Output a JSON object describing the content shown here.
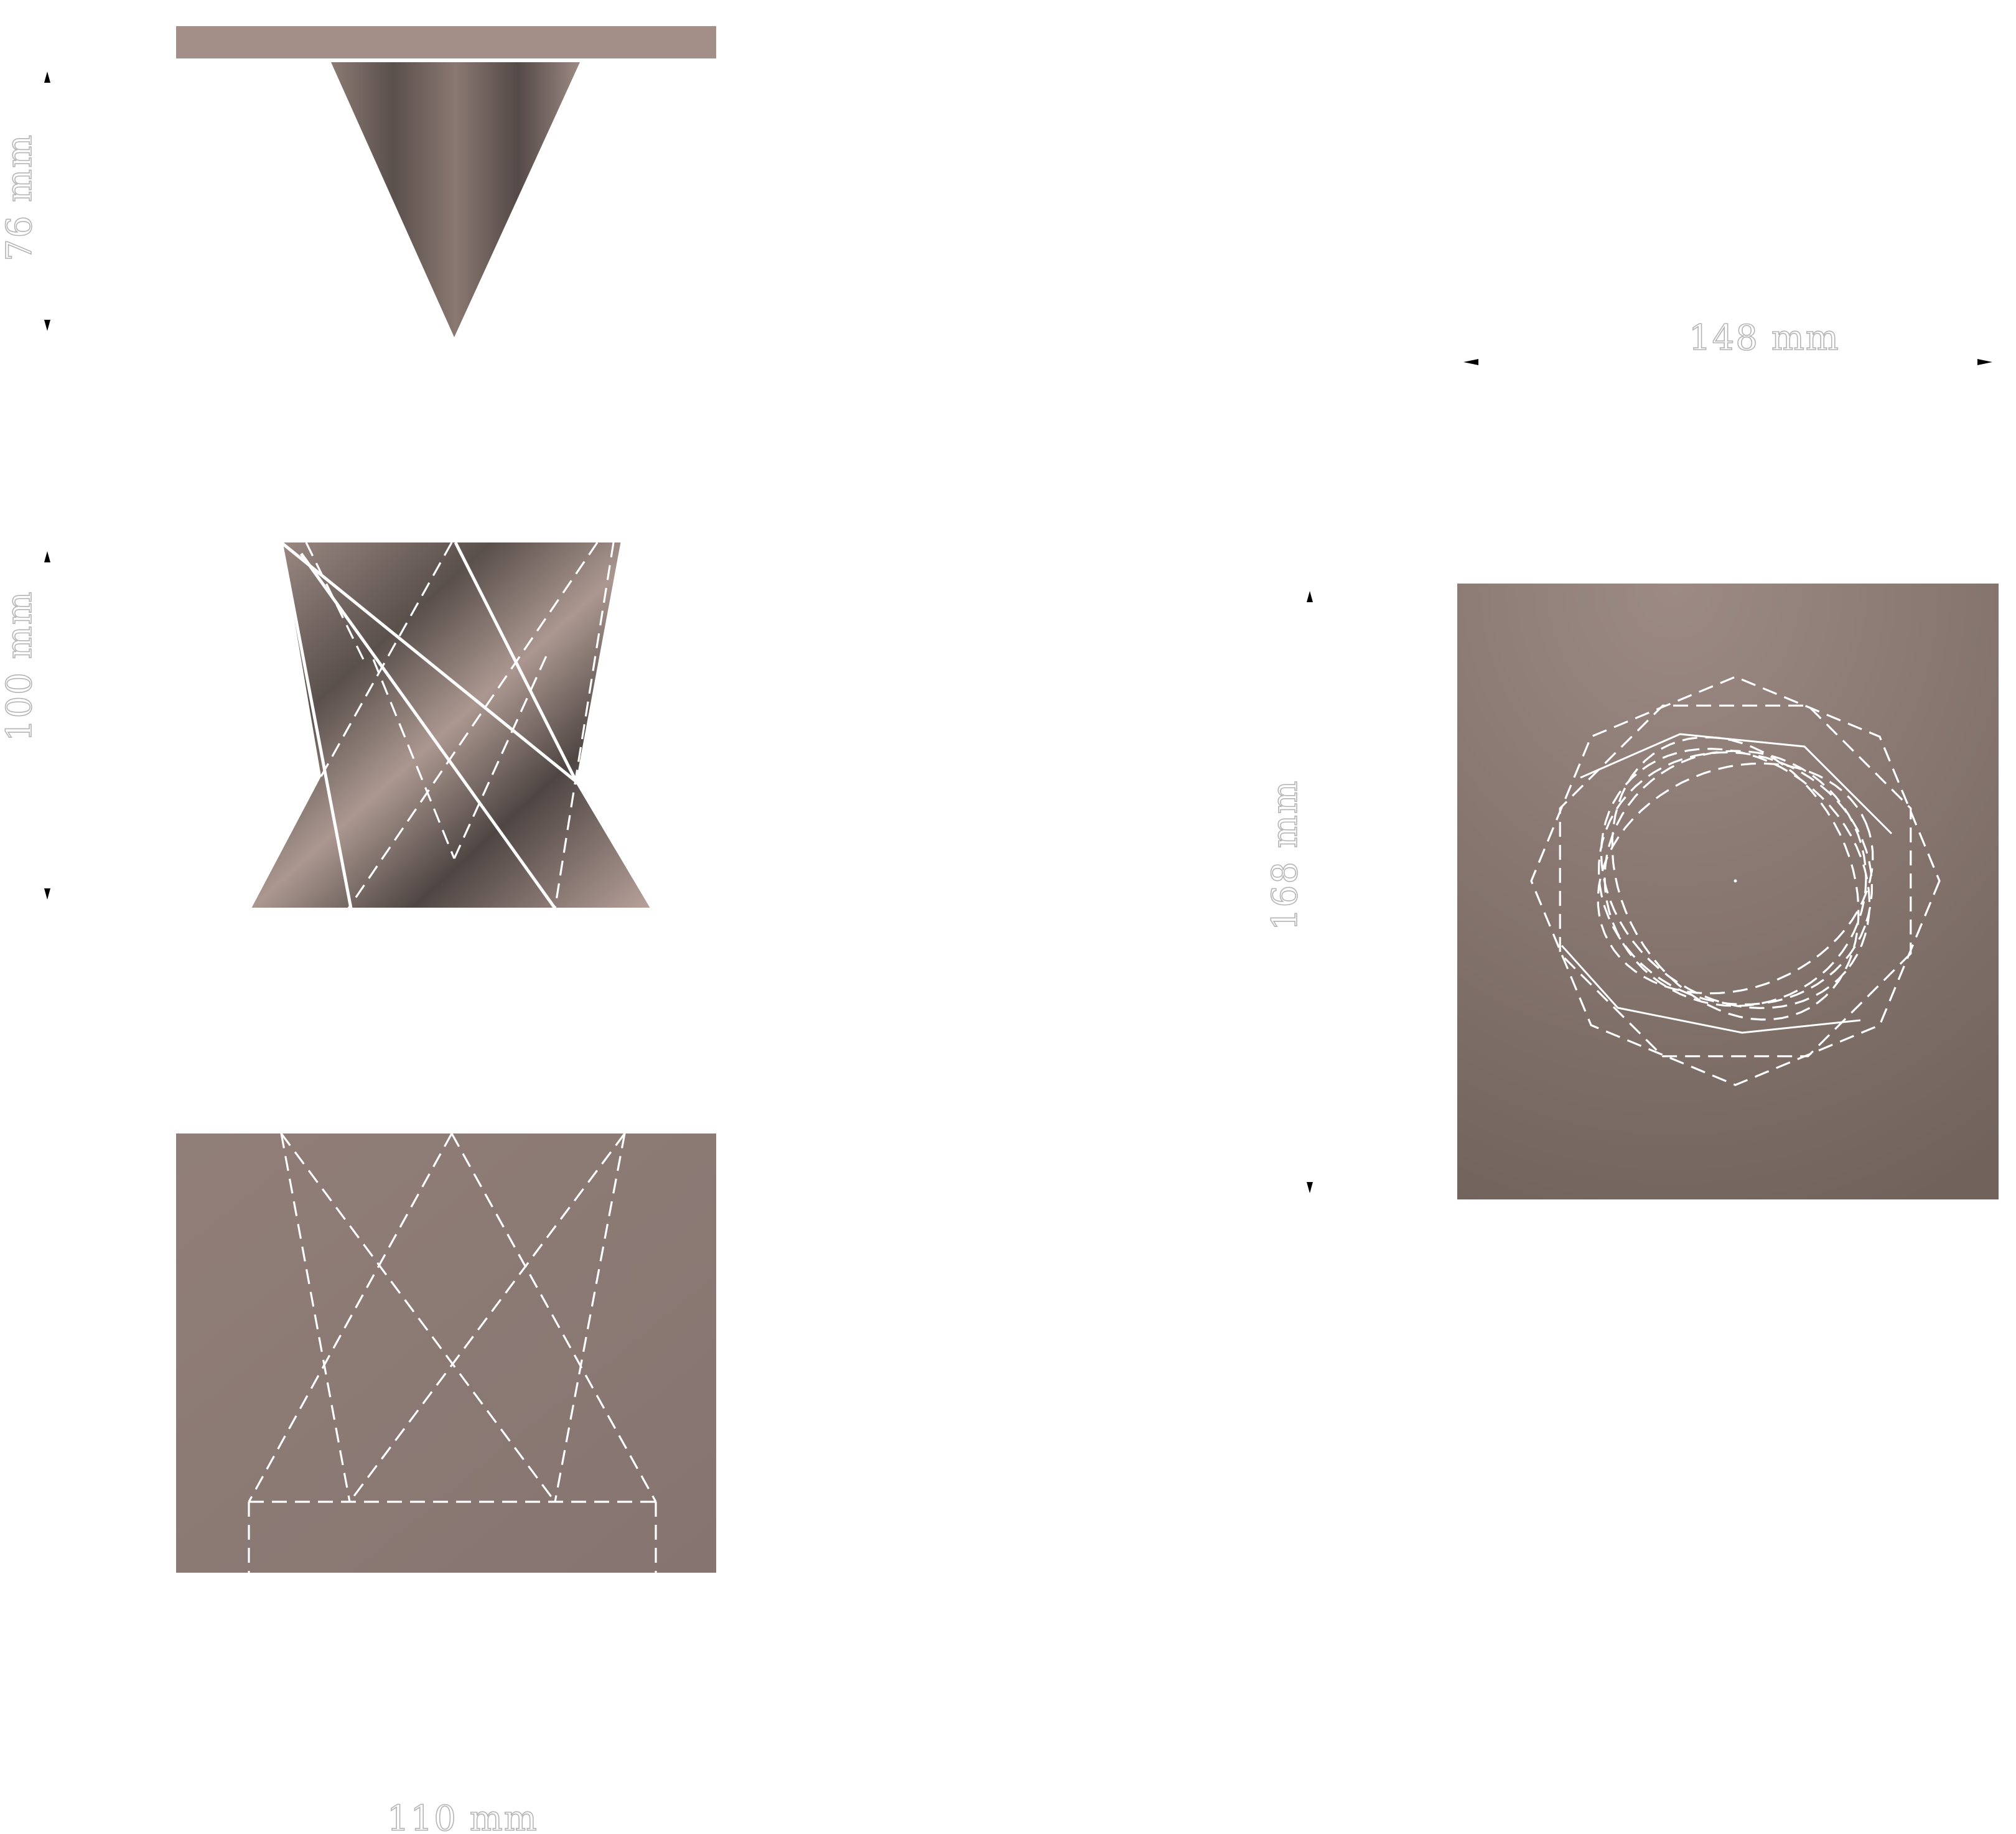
{
  "dimensions": {
    "cone_height": "76 mm",
    "body_height": "100 mm",
    "footprint_width": "110 mm",
    "plan_width": "148 mm",
    "plan_height": "168 mm"
  },
  "colors": {
    "background": "#ffffff",
    "surface_light": "#a48e88",
    "surface_mid": "#8e7b74",
    "surface_dark": "#4f4643",
    "line": "#ffffff",
    "dimension_text": "#b4b4b4",
    "arrow": "#000000"
  }
}
